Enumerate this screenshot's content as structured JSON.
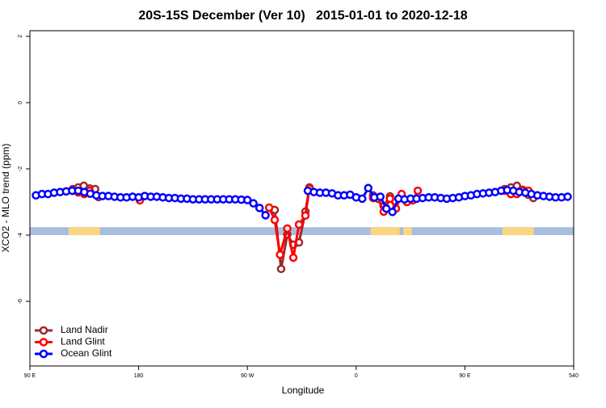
{
  "chart_data": {
    "type": "line",
    "title": "20S-15S December (Ver 10)   2015-01-01 to 2020-12-18",
    "x_label": "Longitude",
    "y_label": "XCO2 - MLO trend (ppm)",
    "xlim": [
      90,
      540
    ],
    "ylim": [
      -7.95,
      2.17
    ],
    "xticks": [
      {
        "value": 90,
        "label": "90 E"
      },
      180,
      {
        "value": 270,
        "label": "90 W"
      },
      {
        "value": 360,
        "label": "0"
      },
      {
        "value": 450,
        "label": "90 E"
      },
      540
    ],
    "yticks": [
      -6,
      -4,
      -2,
      0,
      2
    ],
    "legend": "bottomleft",
    "surface_band": {
      "ylim": [
        -4.0,
        -3.76
      ],
      "color": "#a8bedf",
      "land_color": "#fad67f",
      "land_ranges": [
        [
          122,
          148
        ],
        [
          372,
          396
        ],
        [
          399,
          406
        ],
        [
          481,
          507
        ]
      ]
    },
    "series": [
      {
        "name": "Land Nadir",
        "color": "#a0282d",
        "x": [
          125.5,
          130,
          134.6,
          139.5,
          144,
          146.8,
          null,
          181,
          null,
          292.6,
          297.9,
          303,
          308,
          312.7,
          318,
          321.3,
          null,
          374,
          null,
          382.8,
          388,
          null,
          397.6,
          null,
          483,
          488,
          493,
          497.8,
          502.5,
          506.6
        ],
        "values": [
          -2.61,
          -2.56,
          -2.51,
          -2.59,
          -2.61,
          -2.85,
          null,
          -2.9,
          null,
          -3.24,
          -5.02,
          -3.98,
          -4.29,
          -4.22,
          -3.29,
          -2.56,
          null,
          -2.8,
          null,
          -3.12,
          -2.83,
          null,
          -2.85,
          null,
          -2.61,
          -2.56,
          -2.51,
          -2.63,
          -2.78,
          -2.88
        ]
      },
      {
        "name": "Land Glint",
        "color": "#ff0000",
        "x": [
          125.5,
          130,
          135,
          139.5,
          null,
          181,
          null,
          288,
          292.6,
          297,
          303,
          308,
          312.7,
          318,
          321.3,
          null,
          374,
          378,
          382.8,
          388,
          392.9,
          397.6,
          402,
          406.9,
          411,
          null,
          483,
          488,
          493,
          497.8,
          502.5
        ],
        "values": [
          -2.66,
          -2.71,
          -2.76,
          -2.66,
          null,
          -2.95,
          null,
          -3.17,
          -3.54,
          -4.59,
          -3.8,
          -4.68,
          -3.68,
          -3.41,
          -2.59,
          null,
          -2.88,
          -2.9,
          -3.29,
          -2.9,
          -3.2,
          -2.76,
          -3.0,
          -2.95,
          -2.66,
          null,
          -2.66,
          -2.76,
          -2.76,
          -2.66,
          -2.66
        ]
      },
      {
        "name": "Ocean Glint",
        "color": "#0000ff",
        "x": [
          95,
          100,
          105,
          110,
          115,
          120,
          125,
          130,
          135,
          140,
          145,
          150,
          155,
          160,
          165,
          170,
          175,
          180,
          185,
          190,
          195,
          200,
          205,
          210,
          215,
          220,
          225,
          230,
          235,
          240,
          245,
          250,
          255,
          260,
          265,
          270,
          275,
          280,
          285,
          null,
          320,
          325,
          330,
          335,
          340,
          345,
          350,
          355,
          360,
          365,
          370,
          375,
          380,
          385,
          390,
          395,
          400,
          405,
          410,
          415,
          420,
          425,
          430,
          435,
          440,
          445,
          450,
          455,
          460,
          465,
          470,
          475,
          480,
          485,
          490,
          495,
          500,
          505,
          510,
          515,
          520,
          525,
          530,
          535
        ],
        "values": [
          -2.8,
          -2.76,
          -2.76,
          -2.72,
          -2.7,
          -2.68,
          -2.66,
          -2.66,
          -2.7,
          -2.75,
          -2.8,
          -2.82,
          -2.82,
          -2.84,
          -2.86,
          -2.86,
          -2.84,
          -2.86,
          -2.82,
          -2.84,
          -2.84,
          -2.86,
          -2.88,
          -2.88,
          -2.9,
          -2.9,
          -2.92,
          -2.92,
          -2.92,
          -2.92,
          -2.92,
          -2.92,
          -2.92,
          -2.92,
          -2.93,
          -2.94,
          -3.04,
          -3.18,
          -3.4,
          null,
          -2.66,
          -2.7,
          -2.72,
          -2.72,
          -2.74,
          -2.8,
          -2.8,
          -2.78,
          -2.86,
          -2.9,
          -2.58,
          -2.86,
          -2.84,
          -3.2,
          -3.3,
          -2.9,
          -2.92,
          -2.9,
          -2.9,
          -2.88,
          -2.86,
          -2.86,
          -2.88,
          -2.9,
          -2.88,
          -2.86,
          -2.82,
          -2.8,
          -2.76,
          -2.74,
          -2.72,
          -2.7,
          -2.66,
          -2.64,
          -2.66,
          -2.7,
          -2.72,
          -2.76,
          -2.8,
          -2.82,
          -2.84,
          -2.86,
          -2.86,
          -2.84
        ]
      }
    ]
  }
}
